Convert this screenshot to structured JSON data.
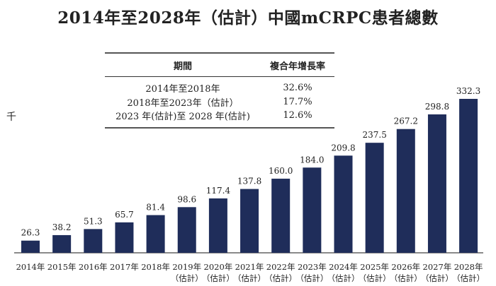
{
  "chart_data": {
    "type": "bar",
    "title": "2014年至2028年（估計）中國mCRPC患者總數",
    "ylabel": "千",
    "categories": [
      [
        "2014年",
        ""
      ],
      [
        "2015年",
        ""
      ],
      [
        "2016年",
        ""
      ],
      [
        "2017年",
        ""
      ],
      [
        "2018年",
        ""
      ],
      [
        "2019年",
        "（估計）"
      ],
      [
        "2020年",
        "（估計）"
      ],
      [
        "2021年",
        "（估計）"
      ],
      [
        "2022年",
        "（估計）"
      ],
      [
        "2023年",
        "（估計）"
      ],
      [
        "2024年",
        "（估計）"
      ],
      [
        "2025年",
        "（估計）"
      ],
      [
        "2026年",
        "（估計）"
      ],
      [
        "2027年",
        "（估計）"
      ],
      [
        "2028年",
        "（估計）"
      ]
    ],
    "values": [
      26.3,
      38.2,
      51.3,
      65.7,
      81.4,
      98.6,
      117.4,
      137.8,
      160.0,
      184.0,
      209.8,
      237.5,
      267.2,
      298.8,
      332.3
    ],
    "ylim": [
      0,
      340
    ],
    "grid": false,
    "bar_color": "#1f2d5a",
    "cagr_table": {
      "headers": [
        "期間",
        "複合年增長率"
      ],
      "rows": [
        [
          "2014年至2018年",
          "32.6%"
        ],
        [
          "2018年至2023年（估計）",
          "17.7%"
        ],
        [
          "2023 年(估計)至 2028 年(估計)",
          "12.6%"
        ]
      ]
    }
  }
}
